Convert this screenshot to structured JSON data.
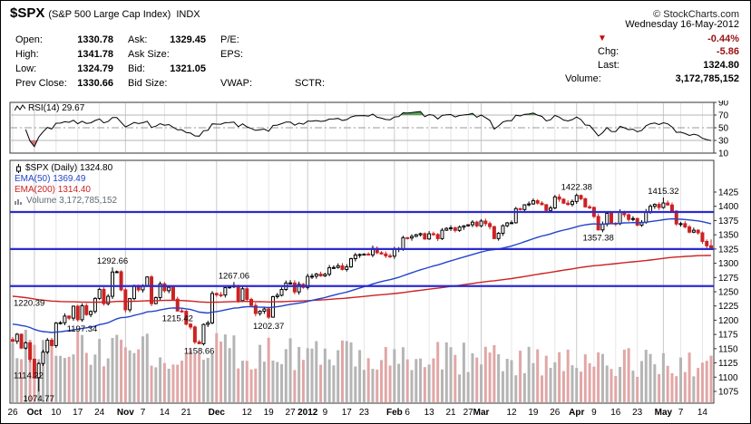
{
  "header": {
    "symbol": "$SPX",
    "description": "(S&P 500 Large Cap Index)",
    "exchange": "INDX",
    "copyright": "© StockCharts.com"
  },
  "quote": {
    "date": "Wednesday 16-May-2012",
    "direction_symbol": "▼",
    "change_pct": "-0.44%",
    "chg_label": "Chg:",
    "chg_value": "-5.86",
    "last_label": "Last:",
    "last_value": "1324.80",
    "volume_label": "Volume:",
    "volume_value": "3,172,785,152",
    "grid": [
      [
        {
          "label": "Open:",
          "value": "1330.78"
        },
        {
          "label": "Ask:",
          "value": "1329.45"
        },
        {
          "label": "P/E:",
          "value": ""
        },
        {
          "label": "",
          "value": ""
        }
      ],
      [
        {
          "label": "High:",
          "value": "1341.78"
        },
        {
          "label": "Ask Size:",
          "value": ""
        },
        {
          "label": "EPS:",
          "value": ""
        },
        {
          "label": "",
          "value": ""
        }
      ],
      [
        {
          "label": "Low:",
          "value": "1324.79"
        },
        {
          "label": "Bid:",
          "value": "1321.05"
        },
        {
          "label": "",
          "value": ""
        },
        {
          "label": "",
          "value": ""
        }
      ],
      [
        {
          "label": "Prev Close:",
          "value": "1330.66"
        },
        {
          "label": "Bid Size:",
          "value": ""
        },
        {
          "label": "VWAP:",
          "value": ""
        },
        {
          "label": "SCTR:",
          "value": ""
        }
      ]
    ]
  },
  "legend": {
    "rsi": "RSI(14) 29.67",
    "symbol_line": "$SPX (Daily) 1324.80",
    "ema50": "EMA(50) 1369.49",
    "ema200": "EMA(200) 1314.40",
    "volume": "Volume 3,172,785,152"
  },
  "chart_data": [
    {
      "type": "line",
      "panel": "rsi",
      "name": "RSI",
      "period": 14,
      "last_value": 29.67,
      "y_ticks": [
        90,
        70,
        50,
        30,
        10
      ],
      "overbought": 70,
      "midline": 50,
      "oversold": 30
    },
    {
      "type": "candlestick",
      "panel": "price",
      "name": "$SPX Daily",
      "last_close": 1324.8,
      "ylim": [
        1062,
        1462
      ],
      "y_ticks": [
        1425,
        1400,
        1375,
        1350,
        1325,
        1300,
        1275,
        1250,
        1225,
        1200,
        1175,
        1150,
        1125,
        1100,
        1075
      ],
      "x_ticks": [
        {
          "i": 0,
          "label": "26"
        },
        {
          "i": 5,
          "label": "Oct",
          "month": true
        },
        {
          "i": 10,
          "label": "10"
        },
        {
          "i": 15,
          "label": "17"
        },
        {
          "i": 20,
          "label": "24"
        },
        {
          "i": 26,
          "label": "Nov",
          "month": true
        },
        {
          "i": 30,
          "label": "7"
        },
        {
          "i": 35,
          "label": "14"
        },
        {
          "i": 40,
          "label": "21"
        },
        {
          "i": 47,
          "label": "Dec",
          "month": true
        },
        {
          "i": 54,
          "label": "12"
        },
        {
          "i": 59,
          "label": "19"
        },
        {
          "i": 64,
          "label": "27"
        },
        {
          "i": 68,
          "label": "2012",
          "month": true
        },
        {
          "i": 72,
          "label": "9"
        },
        {
          "i": 77,
          "label": "17"
        },
        {
          "i": 81,
          "label": "23"
        },
        {
          "i": 88,
          "label": "Feb",
          "month": true
        },
        {
          "i": 91,
          "label": "6"
        },
        {
          "i": 96,
          "label": "13"
        },
        {
          "i": 101,
          "label": "21"
        },
        {
          "i": 105,
          "label": "27"
        },
        {
          "i": 108,
          "label": "Mar",
          "month": true
        },
        {
          "i": 115,
          "label": "12"
        },
        {
          "i": 120,
          "label": "19"
        },
        {
          "i": 125,
          "label": "26"
        },
        {
          "i": 130,
          "label": "Apr",
          "month": true
        },
        {
          "i": 134,
          "label": "9"
        },
        {
          "i": 139,
          "label": "16"
        },
        {
          "i": 144,
          "label": "23"
        },
        {
          "i": 150,
          "label": "May",
          "month": true
        },
        {
          "i": 154,
          "label": "7"
        },
        {
          "i": 159,
          "label": "14"
        }
      ],
      "closes": [
        1162.95,
        1175.38,
        1151.06,
        1160.4,
        1131.42,
        1099.23,
        1123.95,
        1144.03,
        1164.97,
        1155.46,
        1194.89,
        1195.54,
        1207.25,
        1203.66,
        1224.58,
        1200.86,
        1225.38,
        1209.88,
        1215.39,
        1238.25,
        1254.19,
        1229.05,
        1242.0,
        1284.59,
        1285.09,
        1253.3,
        1218.28,
        1237.9,
        1261.15,
        1253.23,
        1261.12,
        1275.92,
        1229.1,
        1239.7,
        1263.85,
        1251.78,
        1257.81,
        1236.91,
        1216.13,
        1215.65,
        1192.98,
        1188.04,
        1161.79,
        1158.67,
        1192.55,
        1195.19,
        1246.96,
        1244.58,
        1244.28,
        1257.08,
        1258.47,
        1261.01,
        1234.35,
        1255.19,
        1236.47,
        1225.73,
        1211.82,
        1215.75,
        1219.66,
        1205.35,
        1241.3,
        1243.72,
        1254.0,
        1265.33,
        1265.43,
        1249.64,
        1263.02,
        1257.6,
        1277.06,
        1277.3,
        1281.06,
        1277.81,
        1280.7,
        1292.08,
        1292.48,
        1295.5,
        1289.09,
        1293.67,
        1308.04,
        1314.5,
        1315.38,
        1316.0,
        1314.65,
        1326.06,
        1318.43,
        1316.33,
        1313.01,
        1312.41,
        1324.09,
        1325.54,
        1344.9,
        1344.33,
        1347.05,
        1349.96,
        1351.95,
        1342.64,
        1351.77,
        1350.5,
        1343.23,
        1358.04,
        1361.23,
        1362.21,
        1357.66,
        1363.46,
        1365.74,
        1367.59,
        1372.18,
        1365.68,
        1374.09,
        1369.63,
        1364.33,
        1343.36,
        1352.63,
        1365.91,
        1370.87,
        1371.09,
        1395.95,
        1394.28,
        1402.6,
        1404.17,
        1409.75,
        1405.52,
        1402.89,
        1392.78,
        1397.11,
        1416.51,
        1412.52,
        1405.54,
        1403.28,
        1408.47,
        1419.04,
        1413.38,
        1398.96,
        1398.08,
        1382.2,
        1358.59,
        1368.71,
        1387.57,
        1370.26,
        1369.57,
        1390.78,
        1385.14,
        1376.92,
        1378.53,
        1366.94,
        1371.97,
        1390.69,
        1399.98,
        1403.36,
        1397.91,
        1405.82,
        1402.31,
        1391.57,
        1369.1,
        1369.58,
        1363.72,
        1354.58,
        1357.99,
        1353.39,
        1338.35,
        1330.66,
        1324.8
      ],
      "high_overrides": {
        "23": 1292.66,
        "51": 1267.06,
        "130": 1422.38,
        "150": 1415.32,
        "161": 1341.78
      },
      "low_overrides": {
        "6": 1074.77,
        "16": 1197.34,
        "38": 1215.42,
        "43": 1158.66,
        "59": 1202.37,
        "135": 1357.38,
        "161": 1324.79
      },
      "annotations": [
        {
          "index": 0,
          "price": 1220.39,
          "text": "1220.39",
          "placement": "left-above"
        },
        {
          "index": 0,
          "price": 1114.22,
          "text": "1114.22",
          "placement": "left-below"
        },
        {
          "index": 6,
          "price": 1074.77,
          "text": "1074.77",
          "placement": "below"
        },
        {
          "index": 16,
          "price": 1197.34,
          "text": "1197.34",
          "placement": "below"
        },
        {
          "index": 23,
          "price": 1292.66,
          "text": "1292.66",
          "placement": "above"
        },
        {
          "index": 38,
          "price": 1215.42,
          "text": "1215.42",
          "placement": "below"
        },
        {
          "index": 43,
          "price": 1158.66,
          "text": "1158.66",
          "placement": "below"
        },
        {
          "index": 51,
          "price": 1267.06,
          "text": "1267.06",
          "placement": "above"
        },
        {
          "index": 59,
          "price": 1202.37,
          "text": "1202.37",
          "placement": "below"
        },
        {
          "index": 130,
          "price": 1422.38,
          "text": "1422.38",
          "placement": "above"
        },
        {
          "index": 135,
          "price": 1357.38,
          "text": "1357.38",
          "placement": "below"
        },
        {
          "index": 150,
          "price": 1415.32,
          "text": "1415.32",
          "placement": "above"
        }
      ],
      "support_resistance": [
        1390,
        1325,
        1260
      ],
      "ema": [
        {
          "period": 50,
          "display": 1369.49,
          "seed": 1193
        },
        {
          "period": 200,
          "display": 1314.4,
          "seed": 1242
        }
      ],
      "volume_last": 3172785152,
      "colors": {
        "candle_up_fill": "#ffffff",
        "candle_stroke": "#000000",
        "candle_down": "#cc2222",
        "ema50": "#2244cc",
        "ema200": "#cc2222",
        "volume_up": "#b5b5b5",
        "volume_down": "#e2a6a6",
        "support_line": "#2b2bd0",
        "rsi_line": "#000000",
        "overbought_fill": "#55a055",
        "oversold_fill": "#cc7777",
        "negative": "#991111",
        "triangle": "#cc0000"
      }
    }
  ]
}
